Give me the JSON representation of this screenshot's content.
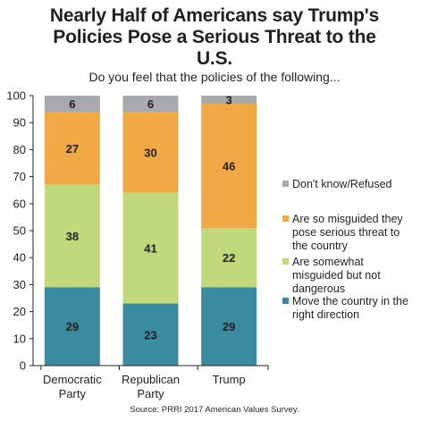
{
  "title_line1": "Nearly Half of Americans say Trump's",
  "title_line2": "Policies Pose a Serious Threat to the",
  "title_line3": "U.S.",
  "subtitle": "Do you feel that the policies of the following...",
  "source": "Source: PRRI 2017 American Values Survey.",
  "chart_data": {
    "type": "bar",
    "stacked": true,
    "orientation": "vertical",
    "categories": [
      [
        "Democratic",
        "Party"
      ],
      [
        "Republican",
        "Party"
      ],
      [
        "Trump"
      ]
    ],
    "series": [
      {
        "name": "Move the country in the right direction",
        "values": [
          29,
          23,
          29
        ],
        "color": "#3a8aa0",
        "label_color": "#1f1f1f"
      },
      {
        "name": "Are somewhat misguided but not dangerous",
        "values": [
          38,
          41,
          22
        ],
        "color": "#c1d97a",
        "label_color": "#1f1f1f"
      },
      {
        "name": "Are so misguided they pose serious threat to the country",
        "values": [
          27,
          30,
          46
        ],
        "color": "#f0a945",
        "label_color": "#1f1f1f"
      },
      {
        "name": "Don't know/Refused",
        "values": [
          6,
          6,
          3
        ],
        "color": "#a7a9ac",
        "label_color": "#1f1f1f"
      }
    ],
    "legend": {
      "position": "right",
      "order": [
        3,
        2,
        1,
        0
      ],
      "lines": [
        [
          "Don't know/Refused"
        ],
        [
          "Are so misguided they",
          "pose serious threat to",
          "the country"
        ],
        [
          "Are somewhat",
          "misguided but not",
          "dangerous"
        ],
        [
          "Move the country in the",
          "right direction"
        ]
      ]
    },
    "y_ticks": [
      0,
      10,
      20,
      30,
      40,
      50,
      60,
      70,
      80,
      90,
      100
    ],
    "ylim": [
      0,
      100
    ],
    "grid": false,
    "xlabel": "",
    "ylabel": ""
  }
}
